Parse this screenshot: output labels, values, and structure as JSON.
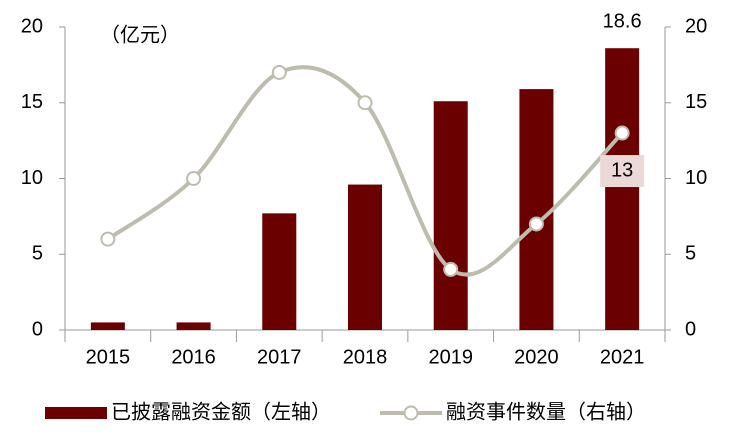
{
  "chart_data": {
    "type": "bar-line",
    "annotation": "（亿元）",
    "categories": [
      "2015",
      "2016",
      "2017",
      "2018",
      "2019",
      "2020",
      "2021"
    ],
    "series": [
      {
        "name": "已披露融资金额（左轴）",
        "type": "bar",
        "color": "#6b0000",
        "values": [
          0.5,
          0.5,
          7.7,
          9.6,
          15.1,
          15.9,
          18.6
        ]
      },
      {
        "name": "融资事件数量（右轴）",
        "type": "line",
        "axis": "y2",
        "color": "#bdbcae",
        "values": [
          6,
          10,
          17,
          15,
          4,
          7,
          13
        ]
      }
    ],
    "data_labels": "last",
    "ylim": [
      0,
      20
    ],
    "yticks": [
      0,
      5,
      10,
      15,
      20
    ],
    "y2lim": [
      0,
      20
    ],
    "y2ticks": [
      0,
      5,
      10,
      15,
      20
    ],
    "grid": false
  }
}
